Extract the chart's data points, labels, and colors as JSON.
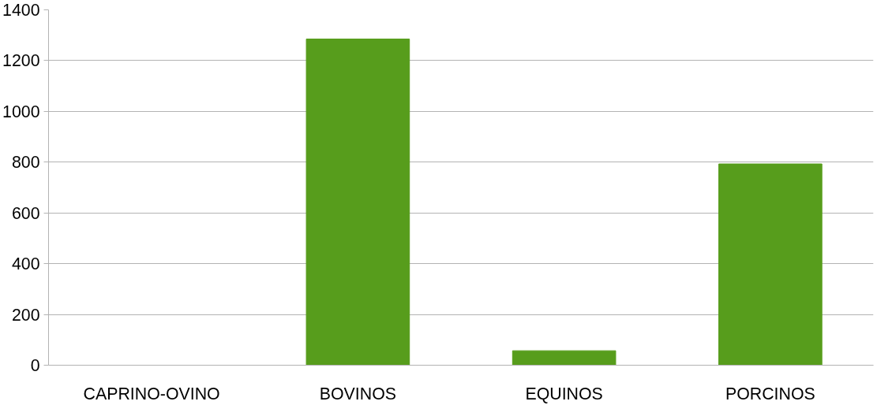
{
  "chart_data": {
    "type": "bar",
    "categories": [
      "CAPRINO-OVINO",
      "BOVINOS",
      "EQUINOS",
      "PORCINOS"
    ],
    "values": [
      0,
      1285,
      57,
      793
    ],
    "color": "#579d1c",
    "ylim": [
      0,
      1400
    ],
    "yticks": [
      0,
      200,
      400,
      600,
      800,
      1000,
      1200,
      1400
    ],
    "grid": "y"
  }
}
